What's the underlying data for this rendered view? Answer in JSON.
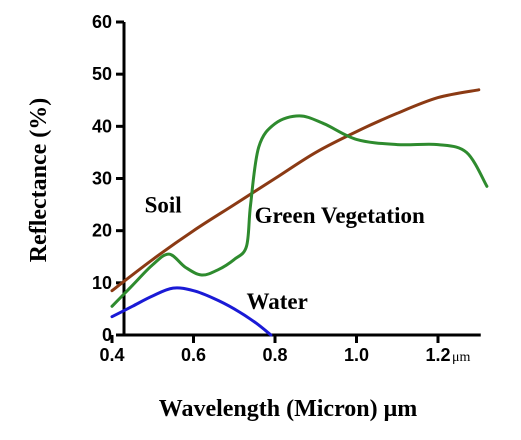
{
  "chart_data": {
    "type": "line",
    "title": "",
    "xlabel": "Wavelength (Micron) μm",
    "ylabel": "Reflectance (%)",
    "x_unit_label": "μm",
    "xlim": [
      0.4,
      1.3
    ],
    "ylim": [
      0,
      60
    ],
    "x_ticks": [
      0.4,
      0.6,
      0.8,
      1.0,
      1.2
    ],
    "x_tick_labels": [
      "0.4",
      "0.6",
      "0.8",
      "1.0",
      "1.2"
    ],
    "y_ticks": [
      0,
      10,
      20,
      30,
      40,
      50,
      60
    ],
    "y_tick_labels": [
      "0",
      "10",
      "20",
      "30",
      "40",
      "50",
      "60"
    ],
    "grid": false,
    "legend": "none",
    "series": [
      {
        "name": "Soil",
        "color": "#8b3a14",
        "points": [
          [
            0.4,
            8.5
          ],
          [
            0.5,
            14.5
          ],
          [
            0.6,
            20.0
          ],
          [
            0.7,
            25.0
          ],
          [
            0.8,
            30.0
          ],
          [
            0.9,
            35.0
          ],
          [
            1.0,
            39.0
          ],
          [
            1.1,
            42.5
          ],
          [
            1.2,
            45.5
          ],
          [
            1.3,
            47.0
          ]
        ]
      },
      {
        "name": "Green Vegetation",
        "color": "#2e8b2e",
        "points": [
          [
            0.4,
            5.5
          ],
          [
            0.45,
            9.5
          ],
          [
            0.5,
            13.5
          ],
          [
            0.54,
            15.5
          ],
          [
            0.58,
            13.0
          ],
          [
            0.62,
            11.5
          ],
          [
            0.66,
            12.5
          ],
          [
            0.7,
            14.5
          ],
          [
            0.73,
            17.0
          ],
          [
            0.74,
            25.0
          ],
          [
            0.76,
            36.0
          ],
          [
            0.8,
            40.5
          ],
          [
            0.86,
            42.0
          ],
          [
            0.92,
            40.5
          ],
          [
            1.0,
            37.5
          ],
          [
            1.1,
            36.5
          ],
          [
            1.2,
            36.5
          ],
          [
            1.27,
            35.0
          ],
          [
            1.32,
            28.5
          ]
        ]
      },
      {
        "name": "Water",
        "color": "#1a1ad6",
        "points": [
          [
            0.4,
            3.5
          ],
          [
            0.45,
            5.5
          ],
          [
            0.5,
            7.5
          ],
          [
            0.55,
            9.0
          ],
          [
            0.6,
            8.5
          ],
          [
            0.65,
            7.0
          ],
          [
            0.7,
            5.0
          ],
          [
            0.75,
            2.5
          ],
          [
            0.79,
            0.0
          ]
        ]
      }
    ],
    "annotations": [
      {
        "text": "Soil",
        "x": 0.48,
        "y": 23.5
      },
      {
        "text": "Green Vegetation",
        "x": 0.75,
        "y": 21.5
      },
      {
        "text": "Water",
        "x": 0.73,
        "y": 5.0
      }
    ]
  }
}
